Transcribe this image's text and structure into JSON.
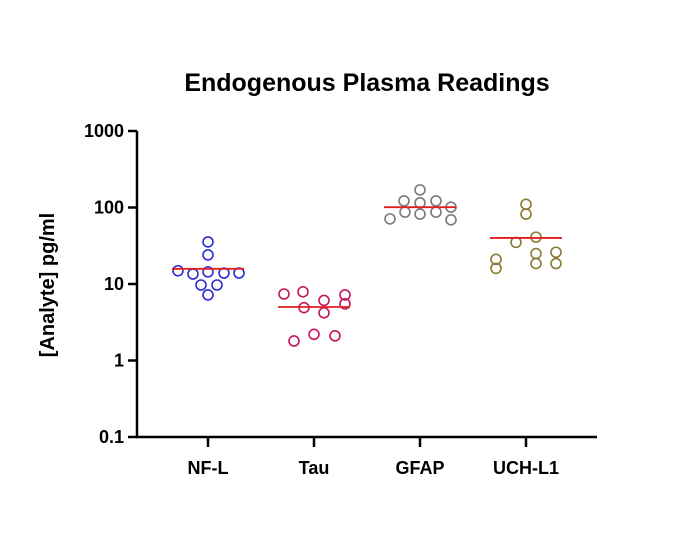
{
  "chart_data": {
    "type": "scatter",
    "subtype": "dot-plot-with-median",
    "title": "Endogenous Plasma Readings",
    "xlabel": "",
    "ylabel": "[Analyte] pg/ml",
    "yscale": "log",
    "ylim": [
      0.1,
      1000
    ],
    "yticks": [
      "0.1",
      "1",
      "10",
      "100",
      "1000"
    ],
    "categories": [
      "NF-L",
      "Tau",
      "GFAP",
      "UCH-L1"
    ],
    "series": [
      {
        "name": "NF-L",
        "color": "#2b2bd6",
        "median": 15.8,
        "points": [
          {
            "dx": 0,
            "v": 35.5
          },
          {
            "dx": 0,
            "v": 24
          },
          {
            "dx": -30,
            "v": 14.9
          },
          {
            "dx": -15,
            "v": 13.5
          },
          {
            "dx": 0,
            "v": 14.4
          },
          {
            "dx": 16,
            "v": 13.9
          },
          {
            "dx": 31,
            "v": 13.9
          },
          {
            "dx": -7,
            "v": 9.7
          },
          {
            "dx": 9,
            "v": 9.7
          },
          {
            "dx": 0,
            "v": 7.2
          }
        ]
      },
      {
        "name": "Tau",
        "color": "#c4175f",
        "median": 5.0,
        "points": [
          {
            "dx": -30,
            "v": 7.4
          },
          {
            "dx": -11,
            "v": 7.9
          },
          {
            "dx": 10,
            "v": 6.1
          },
          {
            "dx": 31,
            "v": 7.2
          },
          {
            "dx": 31,
            "v": 5.5
          },
          {
            "dx": -10,
            "v": 4.9
          },
          {
            "dx": 10,
            "v": 4.2
          },
          {
            "dx": -20,
            "v": 1.8
          },
          {
            "dx": 0,
            "v": 2.2
          },
          {
            "dx": 21,
            "v": 2.1
          }
        ]
      },
      {
        "name": "GFAP",
        "color": "#7a7a7a",
        "median": 101,
        "points": [
          {
            "dx": 0,
            "v": 170
          },
          {
            "dx": -16,
            "v": 122
          },
          {
            "dx": 0,
            "v": 115
          },
          {
            "dx": 16,
            "v": 122
          },
          {
            "dx": -30,
            "v": 71
          },
          {
            "dx": -15,
            "v": 87
          },
          {
            "dx": 0,
            "v": 82
          },
          {
            "dx": 16,
            "v": 87
          },
          {
            "dx": 31,
            "v": 101
          },
          {
            "dx": 31,
            "v": 69
          }
        ]
      },
      {
        "name": "UCH-L1",
        "color": "#8a7a33",
        "median": 40,
        "points": [
          {
            "dx": 0,
            "v": 110
          },
          {
            "dx": 0,
            "v": 82
          },
          {
            "dx": -30,
            "v": 21
          },
          {
            "dx": -30,
            "v": 16
          },
          {
            "dx": -10,
            "v": 35
          },
          {
            "dx": 10,
            "v": 41
          },
          {
            "dx": 10,
            "v": 25
          },
          {
            "dx": 10,
            "v": 18.5
          },
          {
            "dx": 30,
            "v": 26
          },
          {
            "dx": 30,
            "v": 18.5
          }
        ]
      }
    ],
    "median_line_color": "#e02020",
    "grid": false,
    "legend": null
  }
}
